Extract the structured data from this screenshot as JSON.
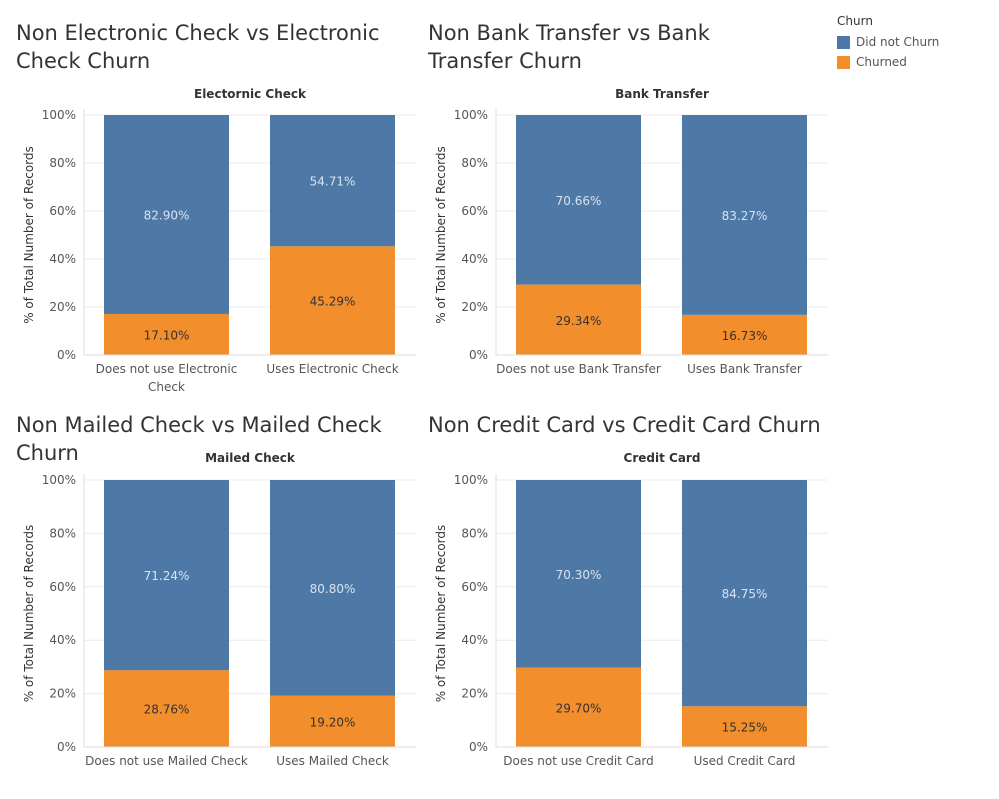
{
  "legend": {
    "title": "Churn",
    "items": [
      {
        "label": "Did not Churn",
        "color": "#4e79a7"
      },
      {
        "label": "Churned",
        "color": "#f28e2b"
      }
    ]
  },
  "chart_data": [
    {
      "type": "bar",
      "stacked": true,
      "title": "Non Electronic Check vs Electronic Check Churn",
      "subtitle": "Electornic Check",
      "ylabel": "% of Total Number of Records",
      "ylim": [
        0,
        100
      ],
      "yticks": [
        "0%",
        "20%",
        "40%",
        "60%",
        "80%",
        "100%"
      ],
      "categories": [
        "Does not use Electronic Check",
        "Uses Electronic Check"
      ],
      "series": [
        {
          "name": "Churned",
          "values": [
            17.1,
            45.29
          ],
          "labels": [
            "17.10%",
            "45.29%"
          ]
        },
        {
          "name": "Did not Churn",
          "values": [
            82.9,
            54.71
          ],
          "labels": [
            "82.90%",
            "54.71%"
          ]
        }
      ]
    },
    {
      "type": "bar",
      "stacked": true,
      "title": "Non Bank Transfer vs Bank Transfer Churn",
      "subtitle": "Bank Transfer",
      "ylabel": "% of Total Number of Records",
      "ylim": [
        0,
        100
      ],
      "yticks": [
        "0%",
        "20%",
        "40%",
        "60%",
        "80%",
        "100%"
      ],
      "categories": [
        "Does not use Bank Transfer",
        "Uses Bank Transfer"
      ],
      "series": [
        {
          "name": "Churned",
          "values": [
            29.34,
            16.73
          ],
          "labels": [
            "29.34%",
            "16.73%"
          ]
        },
        {
          "name": "Did not Churn",
          "values": [
            70.66,
            83.27
          ],
          "labels": [
            "70.66%",
            "83.27%"
          ]
        }
      ]
    },
    {
      "type": "bar",
      "stacked": true,
      "title": "Non Mailed Check vs Mailed Check Churn",
      "subtitle": "Mailed Check",
      "ylabel": "% of Total Number of Records",
      "ylim": [
        0,
        100
      ],
      "yticks": [
        "0%",
        "20%",
        "40%",
        "60%",
        "80%",
        "100%"
      ],
      "categories": [
        "Does not use Mailed Check",
        "Uses Mailed Check"
      ],
      "series": [
        {
          "name": "Churned",
          "values": [
            28.76,
            19.2
          ],
          "labels": [
            "28.76%",
            "19.20%"
          ]
        },
        {
          "name": "Did not Churn",
          "values": [
            71.24,
            80.8
          ],
          "labels": [
            "71.24%",
            "80.80%"
          ]
        }
      ]
    },
    {
      "type": "bar",
      "stacked": true,
      "title": "Non Credit Card vs Credit Card Churn",
      "subtitle": "Credit Card",
      "ylabel": "% of Total Number of Records",
      "ylim": [
        0,
        100
      ],
      "yticks": [
        "0%",
        "20%",
        "40%",
        "60%",
        "80%",
        "100%"
      ],
      "categories": [
        "Does not use Credit Card",
        "Used Credit Card"
      ],
      "series": [
        {
          "name": "Churned",
          "values": [
            29.7,
            15.25
          ],
          "labels": [
            "29.70%",
            "15.25%"
          ]
        },
        {
          "name": "Did not Churn",
          "values": [
            70.3,
            84.75
          ],
          "labels": [
            "70.30%",
            "84.75%"
          ]
        }
      ]
    }
  ]
}
